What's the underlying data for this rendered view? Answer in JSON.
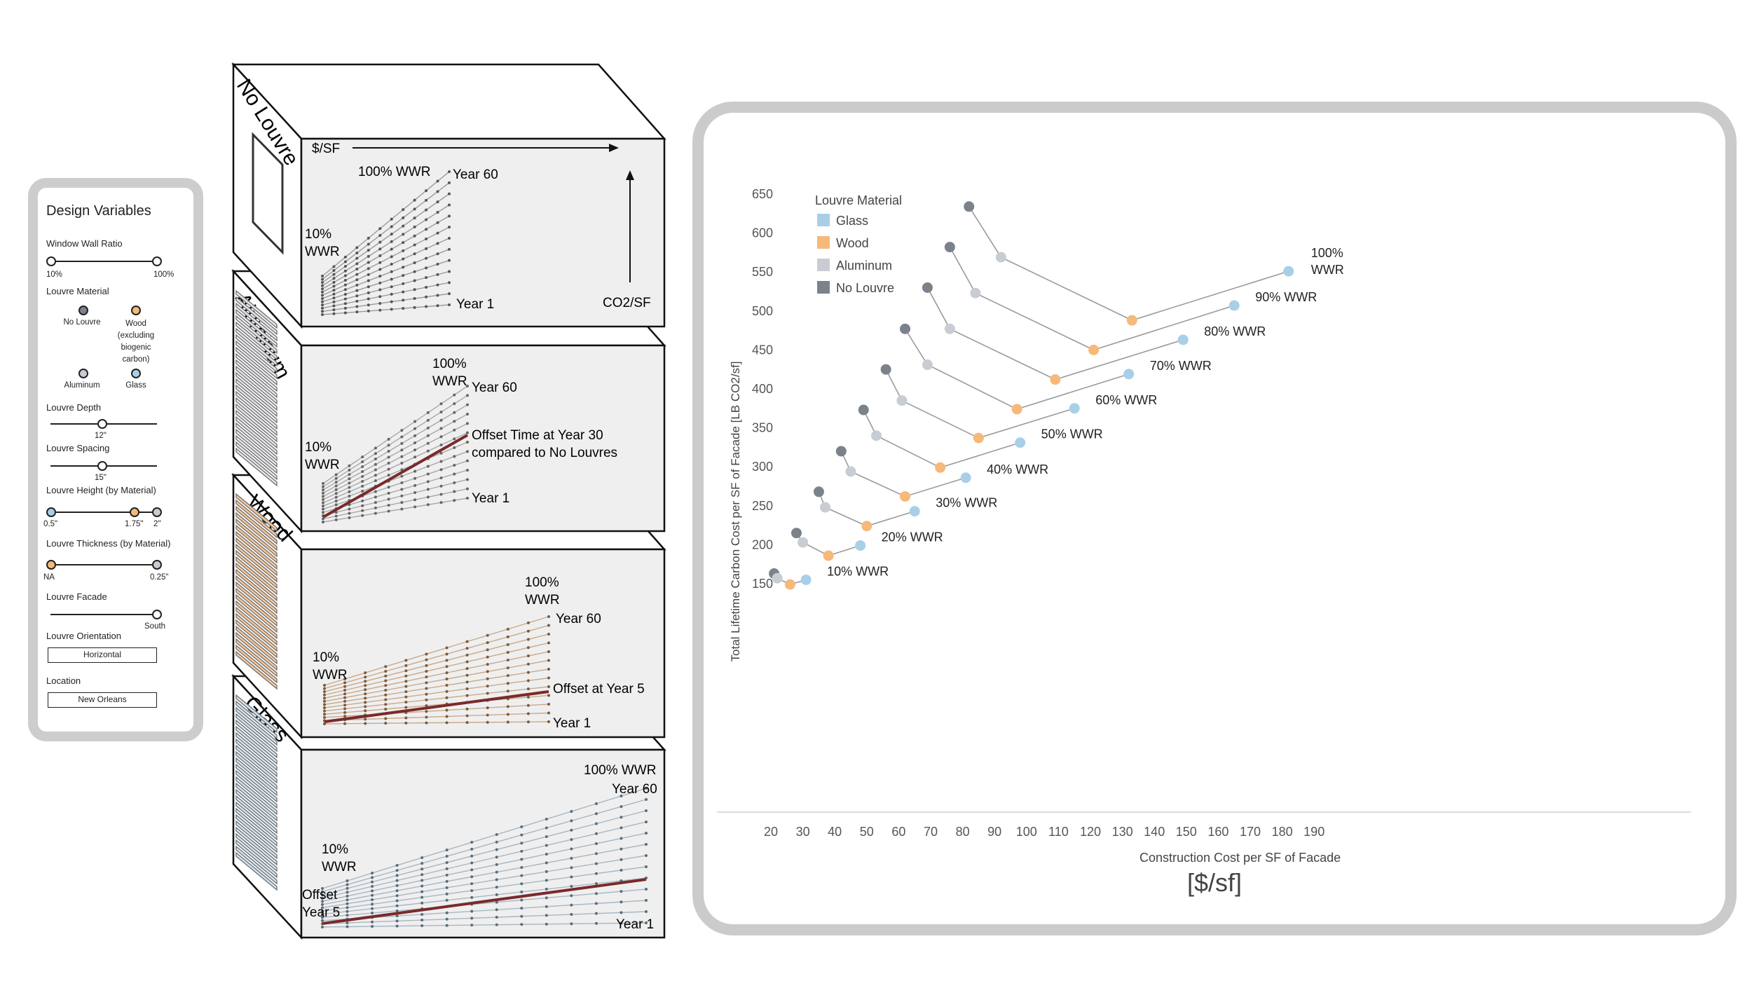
{
  "design_variables": {
    "title": "Design Variables",
    "wwr": {
      "label": "Window Wall Ratio",
      "min": "10%",
      "max": "100%"
    },
    "material": {
      "label": "Louvre Material",
      "options": [
        "No Louvre",
        "Wood (excluding biogenic carbon)",
        "Aluminum",
        "Glass"
      ],
      "wood_l1": "Wood",
      "wood_l2": "(excluding",
      "wood_l3": "biogenic",
      "wood_l4": "carbon)"
    },
    "depth": {
      "label": "Louvre Depth",
      "value": "12\""
    },
    "spacing": {
      "label": "Louvre Spacing",
      "value": "15\""
    },
    "height": {
      "label": "Louvre Height (by Material)",
      "v1": "0.5\"",
      "v2": "1.75\"",
      "v3": "2\""
    },
    "thickness": {
      "label": "Louvre Thickness (by Material)",
      "v1": "NA",
      "v2": "0.25\""
    },
    "facade": {
      "label": "Louvre Facade",
      "value": "South"
    },
    "orientation": {
      "label": "Louvre Orientation",
      "value": "Horizontal"
    },
    "location": {
      "label": "Location",
      "value": "New Orleans"
    }
  },
  "boxes": {
    "no_louvre": {
      "label": "No Louvre",
      "x_axis": "$/SF",
      "y_axis": "CO2/SF",
      "top": "100% WWR",
      "year60": "Year 60",
      "wwr_a": "10%",
      "wwr_b": "WWR",
      "year1": "Year 1"
    },
    "aluminum": {
      "label": "Aluminum",
      "top_a": "100%",
      "top_b": "WWR",
      "year60": "Year 60",
      "wwr_a": "10%",
      "wwr_b": "WWR",
      "offset_a": "Offset Time at Year 30",
      "offset_b": "compared to No Louvres",
      "year1": "Year 1"
    },
    "wood": {
      "label": "Wood",
      "top_a": "100%",
      "top_b": "WWR",
      "year60": "Year 60",
      "wwr_a": "10%",
      "wwr_b": "WWR",
      "offset": "Offset at Year 5",
      "year1": "Year 1"
    },
    "glass": {
      "label": "Glass",
      "top": "100% WWR",
      "year60": "Year 60",
      "wwr_a": "10%",
      "wwr_b": "WWR",
      "offset_a": "Offset",
      "offset_b": "Year 5",
      "year1": "Year 1"
    }
  },
  "colors": {
    "glass": "#a9cfe8",
    "wood": "#f6b97a",
    "aluminum": "#c8cdd4",
    "no_louvre": "#7b828b",
    "offset_line": "#7a2a2a",
    "frame": "#cbcbcb",
    "panel_bg": "#efefef"
  },
  "chart_data": {
    "type": "scatter",
    "xlabel": "Construction Cost per SF of Facade",
    "xunit": "[$/sf]",
    "ylabel": "Total Lifetime Carbon Cost per SF of Facade [LB CO2/sf]",
    "xlim": [
      20,
      190
    ],
    "ylim": [
      150,
      650
    ],
    "xticks": [
      20,
      30,
      40,
      50,
      60,
      70,
      80,
      90,
      100,
      110,
      120,
      130,
      140,
      150,
      160,
      170,
      180,
      190
    ],
    "yticks": [
      150,
      200,
      250,
      300,
      350,
      400,
      450,
      500,
      550,
      600,
      650
    ],
    "legend_title": "Louvre Material",
    "legend_position": "top-left",
    "legend": [
      "Glass",
      "Wood",
      "Aluminum",
      "No Louvre"
    ],
    "groups": [
      {
        "label": "10% WWR",
        "no_louvre": [
          21,
          163
        ],
        "aluminum": [
          22,
          157
        ],
        "wood": [
          26,
          149
        ],
        "glass": [
          31,
          155
        ]
      },
      {
        "label": "20% WWR",
        "no_louvre": [
          28,
          215
        ],
        "aluminum": [
          30,
          203
        ],
        "wood": [
          38,
          186
        ],
        "glass": [
          48,
          199
        ]
      },
      {
        "label": "30% WWR",
        "no_louvre": [
          35,
          268
        ],
        "aluminum": [
          37,
          248
        ],
        "wood": [
          50,
          224
        ],
        "glass": [
          65,
          243
        ]
      },
      {
        "label": "40% WWR",
        "no_louvre": [
          42,
          320
        ],
        "aluminum": [
          45,
          294
        ],
        "wood": [
          62,
          262
        ],
        "glass": [
          81,
          286
        ]
      },
      {
        "label": "50% WWR",
        "no_louvre": [
          49,
          373
        ],
        "aluminum": [
          53,
          340
        ],
        "wood": [
          73,
          299
        ],
        "glass": [
          98,
          331
        ]
      },
      {
        "label": "60% WWR",
        "no_louvre": [
          56,
          425
        ],
        "aluminum": [
          61,
          385
        ],
        "wood": [
          85,
          337
        ],
        "glass": [
          115,
          375
        ]
      },
      {
        "label": "70% WWR",
        "no_louvre": [
          62,
          477
        ],
        "aluminum": [
          69,
          431
        ],
        "wood": [
          97,
          374
        ],
        "glass": [
          132,
          419
        ]
      },
      {
        "label": "80% WWR",
        "no_louvre": [
          69,
          530
        ],
        "aluminum": [
          76,
          477
        ],
        "wood": [
          109,
          412
        ],
        "glass": [
          149,
          463
        ]
      },
      {
        "label": "90% WWR",
        "no_louvre": [
          76,
          582
        ],
        "aluminum": [
          84,
          523
        ],
        "wood": [
          121,
          450
        ],
        "glass": [
          165,
          507
        ]
      },
      {
        "label_a": "100%",
        "label_b": "WWR",
        "no_louvre": [
          82,
          634
        ],
        "aluminum": [
          92,
          569
        ],
        "wood": [
          133,
          488
        ],
        "glass": [
          182,
          551
        ]
      }
    ]
  }
}
